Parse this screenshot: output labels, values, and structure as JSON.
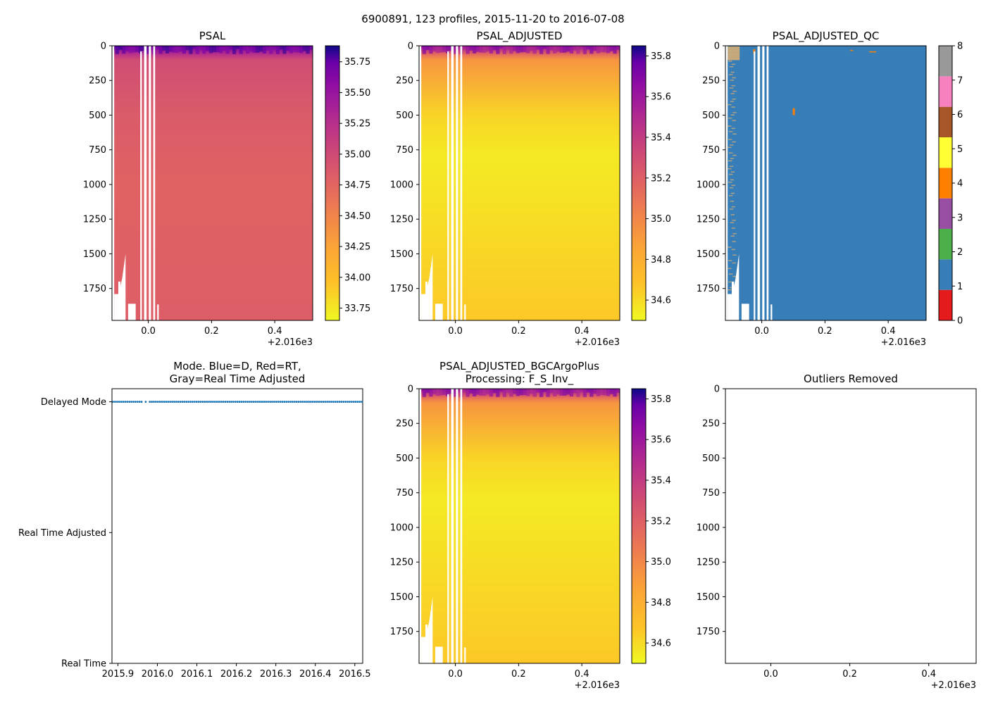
{
  "suptitle": "6900891, 123 profiles, 2015-11-20 to 2016-07-08",
  "colors": {
    "qc_background": "#377eb8",
    "qc_outlier": "#ff7f00",
    "mode_points": "#1f77b4",
    "gap": "#ffffff"
  },
  "chart_data": [
    {
      "id": "psal",
      "type": "heatmap",
      "title": "PSAL",
      "xlim": [
        -0.115,
        0.52
      ],
      "ylim": [
        1980,
        0
      ],
      "xticks": [
        "-0.115",
        "0.0",
        "0.2",
        "0.4"
      ],
      "xtick_labels": [
        "0.0",
        "0.2",
        "0.4"
      ],
      "xtick_values": [
        0.0,
        0.2,
        0.4
      ],
      "x_offset_label": "+2.016e3",
      "yticks": [
        "0",
        "250",
        "500",
        "750",
        "1000",
        "1250",
        "1500",
        "1750"
      ],
      "ytick_values": [
        0,
        250,
        500,
        750,
        1000,
        1250,
        1500,
        1750
      ],
      "colormap": "plasma_r",
      "clim": [
        33.65,
        35.88
      ],
      "colorbar_ticks": [
        "33.75",
        "34.00",
        "34.25",
        "34.50",
        "34.75",
        "35.00",
        "35.25",
        "35.50",
        "35.75"
      ],
      "colorbar_values": [
        33.75,
        34.0,
        34.25,
        34.5,
        34.75,
        35.0,
        35.25,
        35.5,
        35.75
      ],
      "profile_values": [
        {
          "depth": 0,
          "value": 35.72
        },
        {
          "depth": 60,
          "value": 35.25
        },
        {
          "depth": 100,
          "value": 34.98
        },
        {
          "depth": 500,
          "value": 34.85
        },
        {
          "depth": 1000,
          "value": 34.78
        },
        {
          "depth": 1980,
          "value": 34.82
        }
      ]
    },
    {
      "id": "psal_adjusted",
      "type": "heatmap",
      "title": "PSAL_ADJUSTED",
      "xlim": [
        -0.115,
        0.52
      ],
      "ylim": [
        1980,
        0
      ],
      "xtick_labels": [
        "0.0",
        "0.2",
        "0.4"
      ],
      "xtick_values": [
        0.0,
        0.2,
        0.4
      ],
      "x_offset_label": "+2.016e3",
      "yticks": [
        "0",
        "250",
        "500",
        "750",
        "1000",
        "1250",
        "1500",
        "1750"
      ],
      "ytick_values": [
        0,
        250,
        500,
        750,
        1000,
        1250,
        1500,
        1750
      ],
      "colormap": "plasma_r",
      "clim": [
        34.5,
        35.85
      ],
      "colorbar_ticks": [
        "34.6",
        "34.8",
        "35.0",
        "35.2",
        "35.4",
        "35.6",
        "35.8"
      ],
      "colorbar_values": [
        34.6,
        34.8,
        35.0,
        35.2,
        35.4,
        35.6,
        35.8
      ],
      "profile_values": [
        {
          "depth": 0,
          "value": 35.62
        },
        {
          "depth": 60,
          "value": 35.15
        },
        {
          "depth": 100,
          "value": 34.93
        },
        {
          "depth": 500,
          "value": 34.62
        },
        {
          "depth": 800,
          "value": 34.55
        },
        {
          "depth": 1980,
          "value": 34.66
        }
      ]
    },
    {
      "id": "psal_adjusted_qc",
      "type": "heatmap",
      "title": "PSAL_ADJUSTED_QC",
      "xlim": [
        -0.115,
        0.52
      ],
      "ylim": [
        1980,
        0
      ],
      "xtick_labels": [
        "0.0",
        "0.2",
        "0.4"
      ],
      "xtick_values": [
        0.0,
        0.2,
        0.4
      ],
      "x_offset_label": "+2.016e3",
      "yticks": [
        "0",
        "250",
        "500",
        "750",
        "1000",
        "1250",
        "1500",
        "1750"
      ],
      "ytick_values": [
        0,
        250,
        500,
        750,
        1000,
        1250,
        1500,
        1750
      ],
      "colormap": "qc_categorical",
      "dominant_qc_flag": 1,
      "clim": [
        0,
        8
      ],
      "colorbar_ticks": [
        "0",
        "1",
        "2",
        "3",
        "4",
        "5",
        "6",
        "7",
        "8"
      ],
      "colorbar_values": [
        0,
        1,
        2,
        3,
        4,
        5,
        6,
        7,
        8
      ],
      "qc_colors": [
        "#e41a1c",
        "#377eb8",
        "#4daf4a",
        "#984ea3",
        "#ff7f00",
        "#ffff33",
        "#a65628",
        "#f781bf",
        "#999999"
      ]
    },
    {
      "id": "mode",
      "type": "scatter",
      "title": "Mode. Blue=D, Red=RT,",
      "title_line2": "Gray=Real Time Adjusted",
      "xlim": [
        2015.885,
        2016.52
      ],
      "xtick_labels": [
        "2015.9",
        "2016.0",
        "2016.1",
        "2016.2",
        "2016.3",
        "2016.4",
        "2016.5"
      ],
      "xtick_values": [
        2015.9,
        2016.0,
        2016.1,
        2016.2,
        2016.3,
        2016.4,
        2016.5
      ],
      "ytick_labels": [
        "Delayed Mode",
        "Real Time Adjusted",
        "Real Time"
      ],
      "ytick_values": [
        2,
        1,
        0
      ],
      "ylim": [
        0,
        2.1
      ],
      "series": [
        {
          "name": "Delayed Mode",
          "mode_value": 2,
          "profile_count": 123,
          "x_start": 2015.8877,
          "x_end": 2016.518
        }
      ]
    },
    {
      "id": "psal_adjusted_bgc",
      "type": "heatmap",
      "title": "PSAL_ADJUSTED_BGCArgoPlus",
      "title_line2": "Processing: F_S_Inv_",
      "xlim": [
        -0.115,
        0.52
      ],
      "ylim": [
        1980,
        0
      ],
      "xtick_labels": [
        "0.0",
        "0.2",
        "0.4"
      ],
      "xtick_values": [
        0.0,
        0.2,
        0.4
      ],
      "x_offset_label": "+2.016e3",
      "yticks": [
        "0",
        "250",
        "500",
        "750",
        "1000",
        "1250",
        "1500",
        "1750"
      ],
      "ytick_values": [
        0,
        250,
        500,
        750,
        1000,
        1250,
        1500,
        1750
      ],
      "colormap": "plasma_r",
      "clim": [
        34.5,
        35.85
      ],
      "colorbar_ticks": [
        "34.6",
        "34.8",
        "35.0",
        "35.2",
        "35.4",
        "35.6",
        "35.8"
      ],
      "colorbar_values": [
        34.6,
        34.8,
        35.0,
        35.2,
        35.4,
        35.6,
        35.8
      ],
      "profile_values": [
        {
          "depth": 0,
          "value": 35.62
        },
        {
          "depth": 60,
          "value": 35.15
        },
        {
          "depth": 100,
          "value": 34.93
        },
        {
          "depth": 500,
          "value": 34.62
        },
        {
          "depth": 800,
          "value": 34.55
        },
        {
          "depth": 1980,
          "value": 34.66
        }
      ]
    },
    {
      "id": "outliers",
      "type": "scatter",
      "title": "Outliers Removed",
      "xlim": [
        -0.115,
        0.52
      ],
      "ylim": [
        1980,
        0
      ],
      "xtick_labels": [
        "0.0",
        "0.2",
        "0.4"
      ],
      "xtick_values": [
        0.0,
        0.2,
        0.4
      ],
      "x_offset_label": "+2.016e3",
      "yticks": [
        "0",
        "250",
        "500",
        "750",
        "1000",
        "1250",
        "1500",
        "1750"
      ],
      "ytick_values": [
        0,
        250,
        500,
        750,
        1000,
        1250,
        1500,
        1750
      ],
      "series": []
    }
  ]
}
